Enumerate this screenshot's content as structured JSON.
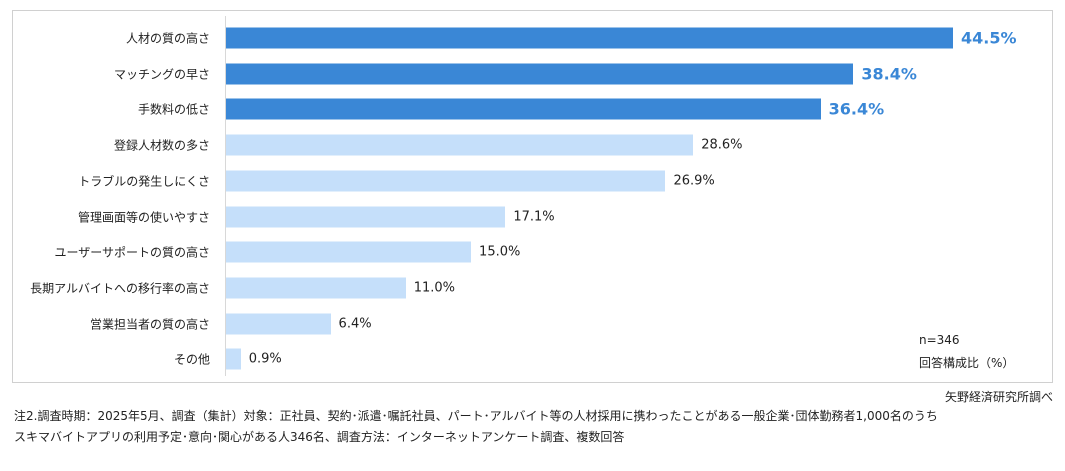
{
  "chart_data": {
    "type": "bar",
    "orientation": "horizontal",
    "categories": [
      "人材の質の高さ",
      "マッチングの早さ",
      "手数料の低さ",
      "登録人材数の多さ",
      "トラブルの発生しにくさ",
      "管理画面等の使いやすさ",
      "ユーザーサポートの質の高さ",
      "長期アルバイトへの移行率の高さ",
      "営業担当者の質の高さ",
      "その他"
    ],
    "values": [
      44.5,
      38.4,
      36.4,
      28.6,
      26.9,
      17.1,
      15.0,
      11.0,
      6.4,
      0.9
    ],
    "value_labels": [
      "44.5%",
      "38.4%",
      "36.4%",
      "28.6%",
      "26.9%",
      "17.1%",
      "15.0%",
      "11.0%",
      "6.4%",
      "0.9%"
    ],
    "highlighted_count": 3,
    "xlim": [
      0,
      50
    ],
    "grid": false,
    "colors": {
      "highlight": "#3a87d6",
      "normal": "#c5dffa",
      "highlight_label": "#3a87d6",
      "label": "#222222"
    },
    "sample_note": "n=346",
    "unit_note": "回答構成比（%）"
  },
  "source": "矢野経済研究所調べ",
  "footnotes": [
    "注2.調査時期：2025年5月、調査（集計）対象：正社員、契約･派遣･嘱託社員、パート･アルバイト等の人材採用に携わったことがある一般企業･団体勤務者1,000名のうち",
    "スキマバイトアプリの利用予定･意向･関心がある人346名、調査方法：インターネットアンケート調査、複数回答"
  ]
}
